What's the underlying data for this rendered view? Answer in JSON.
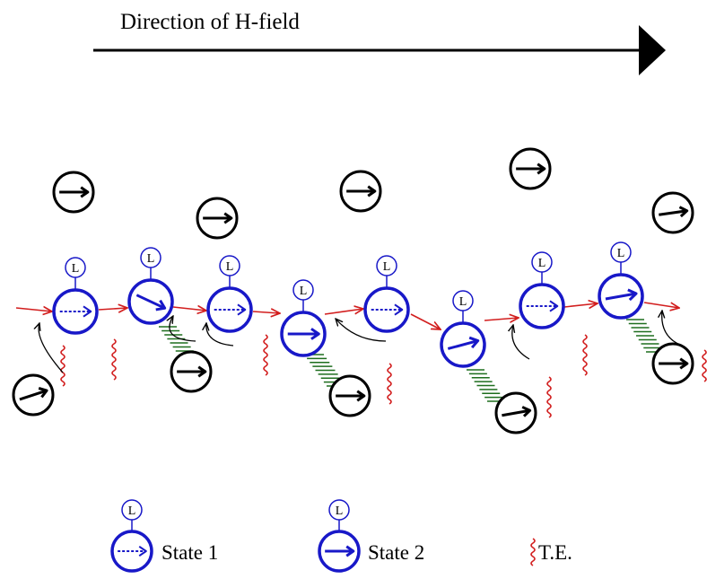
{
  "title": "Direction of H-field",
  "label_L": "L",
  "legend": {
    "state1": "State 1",
    "state2": "State  2",
    "te": "T.E."
  },
  "colors": {
    "black": "#000000",
    "blue": "#1818c8",
    "red": "#d21e1e",
    "green": "#1e6e1e"
  }
}
